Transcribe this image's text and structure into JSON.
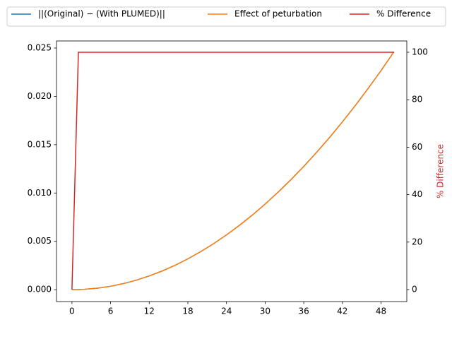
{
  "chart_data": {
    "type": "line",
    "x": [
      0,
      1,
      2,
      4,
      6,
      8,
      10,
      12,
      14,
      16,
      18,
      20,
      22,
      24,
      26,
      28,
      30,
      32,
      34,
      36,
      38,
      40,
      42,
      44,
      46,
      48,
      50
    ],
    "series": [
      {
        "name": "||(Original) − (With PLUMED)||",
        "color": "#1f77b4",
        "values": [
          0,
          9.84e-06,
          3.94e-05,
          0.000157,
          0.000354,
          0.00063,
          0.000984,
          0.00142,
          0.00193,
          0.00252,
          0.00319,
          0.00394,
          0.00476,
          0.00567,
          0.00665,
          0.00771,
          0.00886,
          0.01008,
          0.01138,
          0.01275,
          0.01421,
          0.01574,
          0.01736,
          0.01905,
          0.02082,
          0.02267,
          0.0246
        ]
      },
      {
        "name": "Effect of peturbation",
        "color": "#ff7f0e",
        "values": [
          0,
          9.84e-06,
          3.94e-05,
          0.000157,
          0.000354,
          0.00063,
          0.000984,
          0.00142,
          0.00193,
          0.00252,
          0.00319,
          0.00394,
          0.00476,
          0.00567,
          0.00665,
          0.00771,
          0.00886,
          0.01008,
          0.01138,
          0.01275,
          0.01421,
          0.01574,
          0.01736,
          0.01905,
          0.02082,
          0.02267,
          0.0246
        ]
      },
      {
        "name": "% Difference",
        "color": "#d62728",
        "axis": "y2",
        "values": [
          0,
          100,
          100,
          100,
          100,
          100,
          100,
          100,
          100,
          100,
          100,
          100,
          100,
          100,
          100,
          100,
          100,
          100,
          100,
          100,
          100,
          100,
          100,
          100,
          100,
          100,
          100
        ]
      }
    ],
    "y2_label": "% Difference",
    "y2_label_color": "#d62728",
    "xlim": [
      -2.4,
      52
    ],
    "xticks": [
      0,
      6,
      12,
      18,
      24,
      30,
      36,
      42,
      48
    ],
    "ylim": [
      -0.00123,
      0.02573
    ],
    "yticks": [
      {
        "value": 0,
        "label": "0.000"
      },
      {
        "value": 0.005,
        "label": "0.005"
      },
      {
        "value": 0.01,
        "label": "0.010"
      },
      {
        "value": 0.015,
        "label": "0.015"
      },
      {
        "value": 0.02,
        "label": "0.020"
      },
      {
        "value": 0.025,
        "label": "0.025"
      }
    ],
    "y2lim": [
      -5.06,
      104.76
    ],
    "y2ticks": [
      0,
      20,
      40,
      60,
      80,
      100
    ],
    "grid": false,
    "legend": "top"
  }
}
